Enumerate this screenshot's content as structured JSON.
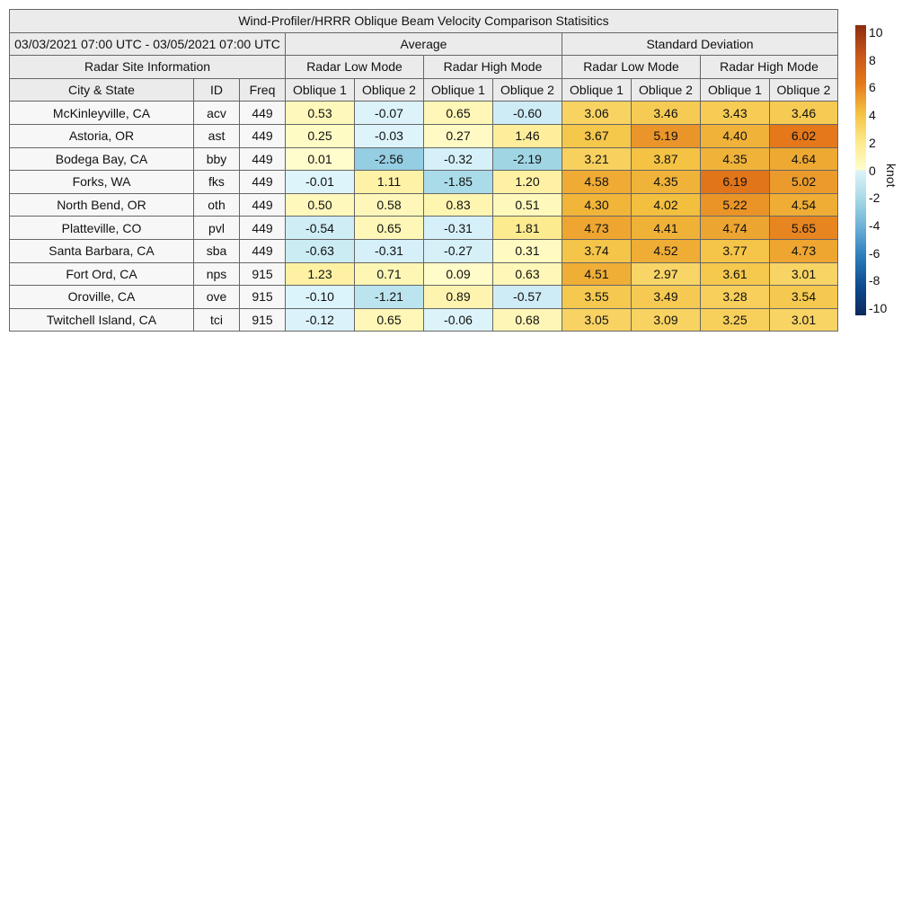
{
  "chart_data": {
    "type": "heatmap",
    "title": "Wind-Profiler/HRRR Oblique Beam Velocity Comparison Statisitics",
    "date_range": "03/03/2021 07:00 UTC - 03/05/2021 07:00 UTC",
    "groups": [
      "Average",
      "Standard Deviation"
    ],
    "subgroups": [
      "Radar Low Mode",
      "Radar High Mode",
      "Radar Low Mode",
      "Radar High Mode"
    ],
    "site_info_label": "Radar Site Information",
    "columns": [
      "City & State",
      "ID",
      "Freq",
      "Oblique 1",
      "Oblique 2",
      "Oblique 1",
      "Oblique 2",
      "Oblique 1",
      "Oblique 2",
      "Oblique 1",
      "Oblique 2"
    ],
    "rows": [
      {
        "city": "McKinleyville, CA",
        "id": "acv",
        "freq": "449",
        "values": [
          "0.53",
          "-0.07",
          "0.65",
          "-0.60",
          "3.06",
          "3.46",
          "3.43",
          "3.46"
        ]
      },
      {
        "city": "Astoria, OR",
        "id": "ast",
        "freq": "449",
        "values": [
          "0.25",
          "-0.03",
          "0.27",
          "1.46",
          "3.67",
          "5.19",
          "4.40",
          "6.02"
        ]
      },
      {
        "city": "Bodega Bay, CA",
        "id": "bby",
        "freq": "449",
        "values": [
          "0.01",
          "-2.56",
          "-0.32",
          "-2.19",
          "3.21",
          "3.87",
          "4.35",
          "4.64"
        ]
      },
      {
        "city": "Forks, WA",
        "id": "fks",
        "freq": "449",
        "values": [
          "-0.01",
          "1.11",
          "-1.85",
          "1.20",
          "4.58",
          "4.35",
          "6.19",
          "5.02"
        ]
      },
      {
        "city": "North Bend, OR",
        "id": "oth",
        "freq": "449",
        "values": [
          "0.50",
          "0.58",
          "0.83",
          "0.51",
          "4.30",
          "4.02",
          "5.22",
          "4.54"
        ]
      },
      {
        "city": "Platteville, CO",
        "id": "pvl",
        "freq": "449",
        "values": [
          "-0.54",
          "0.65",
          "-0.31",
          "1.81",
          "4.73",
          "4.41",
          "4.74",
          "5.65"
        ]
      },
      {
        "city": "Santa Barbara, CA",
        "id": "sba",
        "freq": "449",
        "values": [
          "-0.63",
          "-0.31",
          "-0.27",
          "0.31",
          "3.74",
          "4.52",
          "3.77",
          "4.73"
        ]
      },
      {
        "city": "Fort Ord, CA",
        "id": "nps",
        "freq": "915",
        "values": [
          "1.23",
          "0.71",
          "0.09",
          "0.63",
          "4.51",
          "2.97",
          "3.61",
          "3.01"
        ]
      },
      {
        "city": "Oroville, CA",
        "id": "ove",
        "freq": "915",
        "values": [
          "-0.10",
          "-1.21",
          "0.89",
          "-0.57",
          "3.55",
          "3.49",
          "3.28",
          "3.54"
        ]
      },
      {
        "city": "Twitchell Island, CA",
        "id": "tci",
        "freq": "915",
        "values": [
          "-0.12",
          "0.65",
          "-0.06",
          "0.68",
          "3.05",
          "3.09",
          "3.25",
          "3.01"
        ]
      }
    ],
    "colorbar": {
      "label": "knot",
      "range": [
        -10,
        10
      ],
      "ticks": [
        "10",
        "8",
        "6",
        "4",
        "2",
        "0",
        "-2",
        "-4",
        "-6",
        "-8",
        "-10"
      ]
    }
  }
}
